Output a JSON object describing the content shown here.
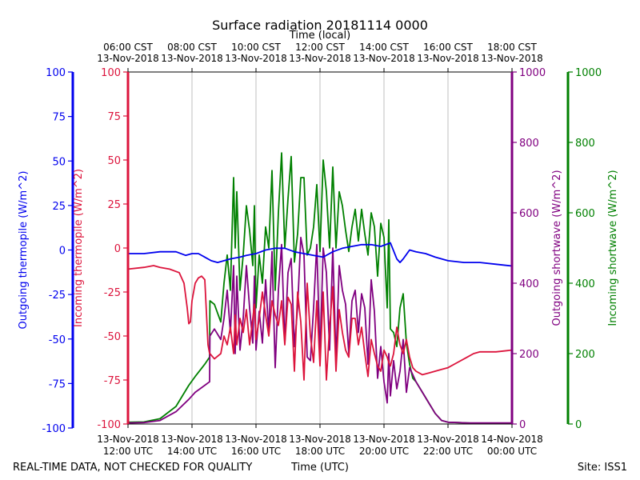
{
  "chart_data": {
    "type": "line",
    "title": "Surface radiation 20181114 0000",
    "top_axis_label": "Time (local)",
    "bottom_axis_label": "Time (UTC)",
    "footer_left": "REAL-TIME DATA, NOT CHECKED FOR QUALITY",
    "footer_right": "Site: ISS1",
    "x_range_utc_hours": [
      12,
      24
    ],
    "grid": true,
    "bottom_ticks": [
      {
        "hour": 12,
        "line1": "13-Nov-2018",
        "line2": "12:00 UTC"
      },
      {
        "hour": 14,
        "line1": "13-Nov-2018",
        "line2": "14:00 UTC"
      },
      {
        "hour": 16,
        "line1": "13-Nov-2018",
        "line2": "16:00 UTC"
      },
      {
        "hour": 18,
        "line1": "13-Nov-2018",
        "line2": "18:00 UTC"
      },
      {
        "hour": 20,
        "line1": "13-Nov-2018",
        "line2": "20:00 UTC"
      },
      {
        "hour": 22,
        "line1": "13-Nov-2018",
        "line2": "22:00 UTC"
      },
      {
        "hour": 24,
        "line1": "14-Nov-2018",
        "line2": "00:00 UTC"
      }
    ],
    "top_ticks": [
      {
        "hour": 12,
        "line1": "06:00 CST",
        "line2": "13-Nov-2018"
      },
      {
        "hour": 14,
        "line1": "08:00 CST",
        "line2": "13-Nov-2018"
      },
      {
        "hour": 16,
        "line1": "10:00 CST",
        "line2": "13-Nov-2018"
      },
      {
        "hour": 18,
        "line1": "12:00 CST",
        "line2": "13-Nov-2018"
      },
      {
        "hour": 20,
        "line1": "14:00 CST",
        "line2": "13-Nov-2018"
      },
      {
        "hour": 22,
        "line1": "16:00 CST",
        "line2": "13-Nov-2018"
      },
      {
        "hour": 24,
        "line1": "18:00 CST",
        "line2": "13-Nov-2018"
      }
    ],
    "axes": [
      {
        "id": "out_thermo",
        "label": "Outgoing thermopile (W/m^2)",
        "color": "#0000ee",
        "ylim": [
          -100,
          100
        ],
        "ticks": [
          -100,
          -75,
          -50,
          -25,
          0,
          25,
          50,
          75,
          100
        ]
      },
      {
        "id": "in_thermo",
        "label": "Incoming thermopile (W/m^2)",
        "color": "#dc143c",
        "ylim": [
          -100,
          100
        ],
        "ticks": [
          -100,
          -75,
          -50,
          -25,
          0,
          25,
          50,
          75,
          100
        ]
      },
      {
        "id": "out_sw",
        "label": "Outgoing shortwave (W/m^2)",
        "color": "#800080",
        "ylim": [
          0,
          1000
        ],
        "ticks": [
          0,
          200,
          400,
          600,
          800,
          1000
        ]
      },
      {
        "id": "in_sw",
        "label": "Incoming shortwave (W/m^2)",
        "color": "#008000",
        "ylim": [
          0,
          1000
        ],
        "ticks": [
          0,
          200,
          400,
          600,
          800,
          1000
        ]
      }
    ],
    "series": [
      {
        "name": "Incoming shortwave",
        "axis": "in_sw",
        "color": "#008000",
        "x": [
          12.0,
          12.5,
          13.0,
          13.5,
          13.9,
          14.1,
          14.4,
          14.55,
          14.56,
          14.7,
          14.9,
          15.0,
          15.1,
          15.2,
          15.3,
          15.35,
          15.4,
          15.5,
          15.6,
          15.7,
          15.8,
          15.9,
          15.95,
          16.0,
          16.1,
          16.2,
          16.3,
          16.4,
          16.5,
          16.6,
          16.7,
          16.8,
          16.9,
          17.0,
          17.1,
          17.2,
          17.3,
          17.4,
          17.5,
          17.6,
          17.7,
          17.8,
          17.9,
          18.0,
          18.1,
          18.2,
          18.3,
          18.4,
          18.5,
          18.6,
          18.7,
          18.8,
          18.9,
          19.0,
          19.1,
          19.2,
          19.3,
          19.4,
          19.5,
          19.6,
          19.7,
          19.8,
          19.9,
          20.0,
          20.1,
          20.15,
          20.2,
          20.3,
          20.4,
          20.5,
          20.6,
          20.7,
          20.8,
          20.9,
          21.0,
          21.2,
          21.4,
          21.6,
          21.8,
          22.0,
          22.3,
          22.6,
          22.8,
          23.0,
          23.5,
          24.0
        ],
        "values": [
          5,
          6,
          15,
          50,
          110,
          135,
          170,
          190,
          350,
          340,
          290,
          400,
          480,
          380,
          700,
          500,
          660,
          380,
          480,
          620,
          550,
          450,
          620,
          330,
          480,
          400,
          560,
          500,
          720,
          380,
          600,
          770,
          500,
          640,
          760,
          460,
          540,
          700,
          700,
          480,
          500,
          560,
          680,
          490,
          750,
          660,
          500,
          730,
          500,
          660,
          620,
          550,
          490,
          560,
          610,
          520,
          610,
          540,
          480,
          600,
          560,
          420,
          570,
          530,
          330,
          580,
          270,
          260,
          220,
          330,
          370,
          230,
          170,
          130,
          120,
          90,
          60,
          30,
          10,
          5,
          4,
          3,
          2,
          2,
          2,
          2
        ]
      },
      {
        "name": "Outgoing shortwave",
        "axis": "out_sw",
        "color": "#800080",
        "x": [
          12.0,
          12.5,
          13.0,
          13.5,
          13.9,
          14.1,
          14.4,
          14.55,
          14.56,
          14.7,
          14.9,
          15.0,
          15.1,
          15.2,
          15.3,
          15.35,
          15.4,
          15.5,
          15.6,
          15.7,
          15.8,
          15.9,
          15.95,
          16.0,
          16.1,
          16.2,
          16.3,
          16.4,
          16.5,
          16.6,
          16.7,
          16.8,
          16.9,
          17.0,
          17.1,
          17.2,
          17.3,
          17.4,
          17.5,
          17.6,
          17.7,
          17.8,
          17.9,
          18.0,
          18.1,
          18.2,
          18.3,
          18.4,
          18.5,
          18.6,
          18.7,
          18.8,
          18.9,
          19.0,
          19.1,
          19.2,
          19.3,
          19.4,
          19.5,
          19.6,
          19.7,
          19.8,
          19.9,
          20.0,
          20.1,
          20.15,
          20.2,
          20.3,
          20.4,
          20.5,
          20.6,
          20.7,
          20.8,
          20.9,
          21.0,
          21.2,
          21.4,
          21.6,
          21.8,
          22.0,
          22.3,
          22.6,
          22.8,
          23.0,
          23.5,
          24.0
        ],
        "values": [
          3,
          4,
          10,
          35,
          70,
          90,
          110,
          120,
          250,
          270,
          240,
          300,
          380,
          260,
          450,
          200,
          420,
          210,
          300,
          450,
          330,
          230,
          420,
          210,
          320,
          230,
          410,
          260,
          490,
          160,
          380,
          510,
          230,
          430,
          470,
          220,
          330,
          530,
          480,
          190,
          180,
          330,
          510,
          190,
          500,
          430,
          210,
          500,
          180,
          450,
          380,
          340,
          200,
          350,
          380,
          260,
          370,
          330,
          170,
          410,
          320,
          130,
          220,
          120,
          60,
          200,
          80,
          180,
          100,
          150,
          240,
          90,
          160,
          140,
          120,
          90,
          60,
          30,
          10,
          5,
          4,
          3,
          3,
          3,
          3,
          3
        ]
      },
      {
        "name": "Incoming thermopile",
        "axis": "in_thermo",
        "color": "#dc143c",
        "x": [
          12.0,
          12.5,
          12.8,
          13.0,
          13.3,
          13.6,
          13.75,
          13.85,
          13.9,
          13.95,
          14.0,
          14.1,
          14.2,
          14.3,
          14.4,
          14.5,
          14.55,
          14.56,
          14.7,
          14.9,
          15.0,
          15.1,
          15.2,
          15.3,
          15.35,
          15.4,
          15.5,
          15.6,
          15.7,
          15.8,
          15.9,
          15.95,
          16.0,
          16.1,
          16.2,
          16.3,
          16.4,
          16.5,
          16.6,
          16.7,
          16.8,
          16.9,
          17.0,
          17.1,
          17.2,
          17.3,
          17.4,
          17.5,
          17.6,
          17.7,
          17.8,
          17.9,
          18.0,
          18.1,
          18.2,
          18.3,
          18.4,
          18.5,
          18.6,
          18.7,
          18.8,
          18.9,
          19.0,
          19.1,
          19.2,
          19.3,
          19.4,
          19.5,
          19.6,
          19.7,
          19.8,
          19.9,
          20.0,
          20.1,
          20.15,
          20.2,
          20.3,
          20.4,
          20.5,
          20.6,
          20.7,
          20.8,
          20.9,
          21.0,
          21.2,
          21.4,
          21.6,
          21.8,
          22.0,
          22.3,
          22.6,
          22.8,
          23.0,
          23.5,
          24.0
        ],
        "values": [
          -12,
          -11,
          -10,
          -11,
          -12,
          -14,
          -20,
          -34,
          -43,
          -42,
          -30,
          -20,
          -17,
          -16,
          -18,
          -55,
          -60,
          -60,
          -63,
          -60,
          -50,
          -55,
          -45,
          -60,
          -38,
          -55,
          -40,
          -48,
          -35,
          -55,
          -40,
          -32,
          -52,
          -40,
          -25,
          -38,
          -50,
          -30,
          -38,
          -44,
          -30,
          -55,
          -28,
          -32,
          -70,
          -25,
          -42,
          -75,
          -20,
          -50,
          -65,
          -30,
          -67,
          -25,
          -75,
          -45,
          -22,
          -70,
          -35,
          -48,
          -58,
          -62,
          -40,
          -40,
          -55,
          -45,
          -60,
          -73,
          -52,
          -60,
          -67,
          -70,
          -58,
          -62,
          -65,
          -67,
          -60,
          -45,
          -55,
          -60,
          -52,
          -62,
          -68,
          -70,
          -72,
          -71,
          -70,
          -69,
          -68,
          -65,
          -62,
          -60,
          -59,
          -59,
          -58
        ]
      },
      {
        "name": "Outgoing thermopile",
        "axis": "out_thermo",
        "color": "#0000ee",
        "x": [
          12.0,
          12.5,
          13.0,
          13.5,
          13.8,
          14.0,
          14.2,
          14.4,
          14.6,
          14.8,
          15.0,
          15.2,
          15.5,
          15.7,
          16.0,
          16.3,
          16.6,
          16.9,
          17.2,
          17.5,
          17.8,
          18.1,
          18.4,
          18.7,
          19.0,
          19.3,
          19.6,
          19.9,
          20.2,
          20.4,
          20.5,
          20.6,
          20.8,
          21.0,
          21.3,
          21.6,
          22.0,
          22.5,
          23.0,
          23.5,
          24.0
        ],
        "values": [
          -2,
          -2,
          -1,
          -1,
          -3,
          -2,
          -2,
          -4,
          -6,
          -7,
          -6,
          -5,
          -4,
          -3,
          -2,
          0,
          1,
          1,
          -1,
          -2,
          -3,
          -4,
          -1,
          1,
          2,
          3,
          3,
          2,
          4,
          -5,
          -7,
          -5,
          0,
          -1,
          -2,
          -4,
          -6,
          -7,
          -7,
          -8,
          -9
        ]
      }
    ]
  }
}
